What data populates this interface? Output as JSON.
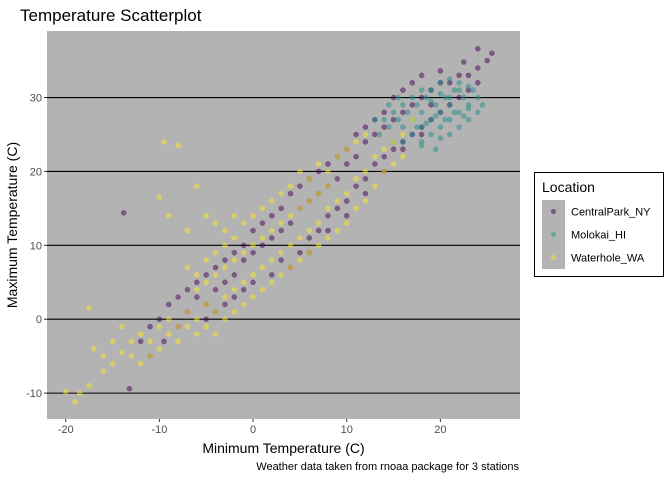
{
  "chart_data": {
    "type": "scatter",
    "title": "Temperature Scatterplot",
    "xlabel": "Minimum Temperature (C)",
    "ylabel": "Maximum Temperature (C)",
    "caption": "Weather data taken from rnoaa package for 3 stations",
    "xlim": [
      -22,
      28.5
    ],
    "ylim": [
      -13.5,
      39
    ],
    "x_ticks": [
      -20,
      -10,
      0,
      10,
      20
    ],
    "y_ticks": [
      -10,
      0,
      10,
      20,
      30
    ],
    "x_tick_labels": [
      "-20",
      "-10",
      "0",
      "10",
      "20"
    ],
    "y_tick_labels": [
      "-10",
      "0",
      "10",
      "20",
      "30"
    ],
    "grid": "horizontal major lines only",
    "panel_background": "#b3b3b3",
    "gridline_color": "#000000",
    "point_opacity": 0.5,
    "legend": {
      "title": "Location",
      "position": "right"
    },
    "series": [
      {
        "name": "CentralPark_NY",
        "color": "#440154",
        "points": [
          [
            -13.8,
            14.4
          ],
          [
            -13.2,
            -9.4
          ],
          [
            -11,
            -5
          ],
          [
            -9.5,
            -3
          ],
          [
            -8,
            -1
          ],
          [
            -7,
            1
          ],
          [
            -6,
            3
          ],
          [
            -5,
            2
          ],
          [
            -4,
            4
          ],
          [
            -3,
            5
          ],
          [
            -2,
            6
          ],
          [
            -1,
            8
          ],
          [
            0,
            9
          ],
          [
            1,
            10
          ],
          [
            2,
            11
          ],
          [
            3,
            12
          ],
          [
            4,
            13
          ],
          [
            5,
            15
          ],
          [
            6,
            16
          ],
          [
            7,
            17
          ],
          [
            8,
            18
          ],
          [
            9,
            19
          ],
          [
            10,
            21
          ],
          [
            11,
            22
          ],
          [
            12,
            24
          ],
          [
            13,
            25
          ],
          [
            14,
            26
          ],
          [
            15,
            27
          ],
          [
            16,
            28
          ],
          [
            17,
            29
          ],
          [
            18,
            30
          ],
          [
            19,
            31
          ],
          [
            20,
            32
          ],
          [
            21,
            32
          ],
          [
            22,
            33
          ],
          [
            23,
            33
          ],
          [
            24,
            34
          ],
          [
            25,
            35
          ],
          [
            25.5,
            36
          ],
          [
            24,
            36.6
          ],
          [
            22.5,
            34.8
          ],
          [
            20,
            33.6
          ],
          [
            18,
            33
          ],
          [
            17,
            32
          ],
          [
            16,
            31
          ],
          [
            15,
            30
          ],
          [
            14,
            28
          ],
          [
            13,
            27
          ],
          [
            12,
            26
          ],
          [
            11,
            25
          ],
          [
            10,
            23
          ],
          [
            9,
            22
          ],
          [
            8,
            21
          ],
          [
            7,
            20
          ],
          [
            6,
            19
          ],
          [
            5,
            18
          ],
          [
            4,
            17
          ],
          [
            3,
            15
          ],
          [
            2,
            14
          ],
          [
            1,
            13
          ],
          [
            0,
            12
          ],
          [
            -1,
            10
          ],
          [
            -2,
            9
          ],
          [
            -3,
            8
          ],
          [
            -4,
            7
          ],
          [
            -5,
            6
          ],
          [
            -6,
            5
          ],
          [
            -7,
            4
          ],
          [
            -8,
            3
          ],
          [
            -9,
            2
          ],
          [
            -10,
            0
          ],
          [
            -11,
            -1
          ],
          [
            -12,
            -3
          ],
          [
            3,
            8
          ],
          [
            5,
            9
          ],
          [
            6,
            11
          ],
          [
            7,
            12
          ],
          [
            8,
            14
          ],
          [
            9,
            15
          ],
          [
            10,
            16
          ],
          [
            11,
            18
          ],
          [
            12,
            19
          ],
          [
            13,
            21
          ],
          [
            14,
            22
          ],
          [
            15,
            23
          ],
          [
            16,
            24
          ],
          [
            17,
            25
          ],
          [
            18,
            26
          ],
          [
            19,
            27
          ],
          [
            20,
            28
          ],
          [
            21,
            29
          ],
          [
            22,
            30
          ],
          [
            23,
            31
          ],
          [
            24,
            32
          ],
          [
            0,
            5
          ],
          [
            -1,
            4
          ],
          [
            -2,
            3
          ],
          [
            -3,
            2
          ],
          [
            -4,
            1
          ],
          [
            -5,
            0
          ],
          [
            2,
            6
          ],
          [
            4,
            7
          ],
          [
            6,
            9
          ],
          [
            8,
            12
          ],
          [
            10,
            14
          ],
          [
            12,
            17
          ],
          [
            14,
            20
          ],
          [
            16,
            23
          ],
          [
            18,
            25
          ],
          [
            19,
            29
          ]
        ]
      },
      {
        "name": "Molokai_HI",
        "color": "#21908c",
        "points": [
          [
            13.5,
            25
          ],
          [
            14.5,
            26
          ],
          [
            15.5,
            27
          ],
          [
            16,
            26
          ],
          [
            16.5,
            28
          ],
          [
            17,
            27
          ],
          [
            17.5,
            29
          ],
          [
            18,
            28
          ],
          [
            18.5,
            30
          ],
          [
            19,
            27
          ],
          [
            19.5,
            29
          ],
          [
            20,
            28
          ],
          [
            20.5,
            30
          ],
          [
            21,
            29
          ],
          [
            21.5,
            31
          ],
          [
            22,
            28
          ],
          [
            22.5,
            30
          ],
          [
            23,
            29
          ],
          [
            23.5,
            31
          ],
          [
            24,
            30
          ],
          [
            16,
            24
          ],
          [
            17,
            25
          ],
          [
            18,
            26
          ],
          [
            19,
            25
          ],
          [
            20,
            26
          ],
          [
            21,
            27
          ],
          [
            22,
            26
          ],
          [
            23,
            27
          ],
          [
            15,
            24
          ],
          [
            18,
            24
          ],
          [
            19,
            31
          ],
          [
            20,
            32
          ],
          [
            21,
            32.5
          ],
          [
            22,
            32
          ],
          [
            23,
            31.5
          ],
          [
            17,
            30
          ],
          [
            18,
            31
          ],
          [
            16,
            29
          ],
          [
            15,
            28
          ],
          [
            14,
            27
          ],
          [
            19.5,
            27.5
          ],
          [
            20.5,
            27
          ],
          [
            21.5,
            28
          ],
          [
            22.5,
            27.5
          ],
          [
            18.5,
            26.5
          ],
          [
            17.5,
            26
          ],
          [
            20,
            30.5
          ],
          [
            21,
            30
          ],
          [
            22,
            31
          ],
          [
            19,
            29.5
          ],
          [
            18,
            23.5
          ],
          [
            19.5,
            23
          ],
          [
            20,
            24.5
          ],
          [
            21,
            25
          ],
          [
            14.5,
            29
          ],
          [
            13,
            27
          ],
          [
            15.5,
            30
          ],
          [
            24.5,
            29
          ],
          [
            24,
            28
          ],
          [
            23,
            28.5
          ]
        ]
      },
      {
        "name": "Waterhole_WA",
        "color": "#fde725",
        "points": [
          [
            -20,
            -9.8
          ],
          [
            -19,
            -11.2
          ],
          [
            -18.5,
            -10
          ],
          [
            -17.5,
            -9
          ],
          [
            -17.5,
            1.5
          ],
          [
            -17,
            -4
          ],
          [
            -16,
            -7
          ],
          [
            -15,
            -6
          ],
          [
            -14,
            -4.5
          ],
          [
            -13,
            -3
          ],
          [
            -12,
            -2
          ],
          [
            -11,
            -3
          ],
          [
            -10,
            -1
          ],
          [
            -9,
            0
          ],
          [
            -8,
            -1
          ],
          [
            -7,
            1
          ],
          [
            -6,
            0
          ],
          [
            -5,
            2
          ],
          [
            -4,
            1
          ],
          [
            -3,
            3
          ],
          [
            -2,
            4
          ],
          [
            -1,
            5
          ],
          [
            0,
            6
          ],
          [
            1,
            7
          ],
          [
            2,
            8
          ],
          [
            3,
            9
          ],
          [
            4,
            10
          ],
          [
            5,
            11
          ],
          [
            6,
            12
          ],
          [
            7,
            13
          ],
          [
            8,
            15
          ],
          [
            9,
            16
          ],
          [
            10,
            17
          ],
          [
            11,
            19
          ],
          [
            12,
            20
          ],
          [
            13,
            22
          ],
          [
            14,
            23
          ],
          [
            15,
            24
          ],
          [
            16,
            25
          ],
          [
            17,
            27
          ],
          [
            -10,
            16.5
          ],
          [
            -9,
            14
          ],
          [
            -9.5,
            24
          ],
          [
            -8,
            23.5
          ],
          [
            -6,
            18
          ],
          [
            -7,
            12
          ],
          [
            -5,
            14
          ],
          [
            -4,
            13
          ],
          [
            -3,
            10
          ],
          [
            -2,
            11
          ],
          [
            -1,
            9
          ],
          [
            0,
            10
          ],
          [
            1,
            11
          ],
          [
            2,
            12
          ],
          [
            3,
            13
          ],
          [
            4,
            14
          ],
          [
            5,
            15
          ],
          [
            6,
            16
          ],
          [
            7,
            17
          ],
          [
            8,
            18
          ],
          [
            -6,
            4
          ],
          [
            -5,
            5
          ],
          [
            -4,
            6
          ],
          [
            -3,
            7
          ],
          [
            -2,
            8
          ],
          [
            -6,
            -2
          ],
          [
            -7,
            -1
          ],
          [
            -8,
            -3
          ],
          [
            -9,
            -2
          ],
          [
            -10,
            -4
          ],
          [
            -11,
            -5
          ],
          [
            -12,
            -6
          ],
          [
            -13,
            -5
          ],
          [
            -5,
            -1
          ],
          [
            -4,
            -2
          ],
          [
            -3,
            0
          ],
          [
            -2,
            1
          ],
          [
            -1,
            2
          ],
          [
            0,
            3
          ],
          [
            1,
            4
          ],
          [
            2,
            5
          ],
          [
            3,
            6
          ],
          [
            4,
            7
          ],
          [
            5,
            8
          ],
          [
            6,
            9
          ],
          [
            7,
            10
          ],
          [
            8,
            11
          ],
          [
            9,
            12
          ],
          [
            10,
            13
          ],
          [
            11,
            15
          ],
          [
            12,
            16
          ],
          [
            13,
            18
          ],
          [
            14,
            20
          ],
          [
            15,
            21
          ],
          [
            16,
            22
          ],
          [
            -14,
            -1
          ],
          [
            -15,
            -3
          ],
          [
            -16,
            -5
          ],
          [
            -6,
            6
          ],
          [
            -7,
            7
          ],
          [
            5,
            20
          ],
          [
            7,
            21
          ],
          [
            9,
            22
          ],
          [
            10,
            23
          ],
          [
            11,
            24
          ],
          [
            12,
            25
          ],
          [
            -5,
            8
          ],
          [
            -4,
            9
          ],
          [
            -3,
            12
          ],
          [
            -2,
            14
          ],
          [
            -1,
            13
          ],
          [
            0,
            14
          ],
          [
            1,
            15
          ],
          [
            2,
            16
          ],
          [
            3,
            17
          ],
          [
            4,
            18
          ],
          [
            6,
            19
          ],
          [
            8,
            20
          ]
        ]
      }
    ]
  }
}
